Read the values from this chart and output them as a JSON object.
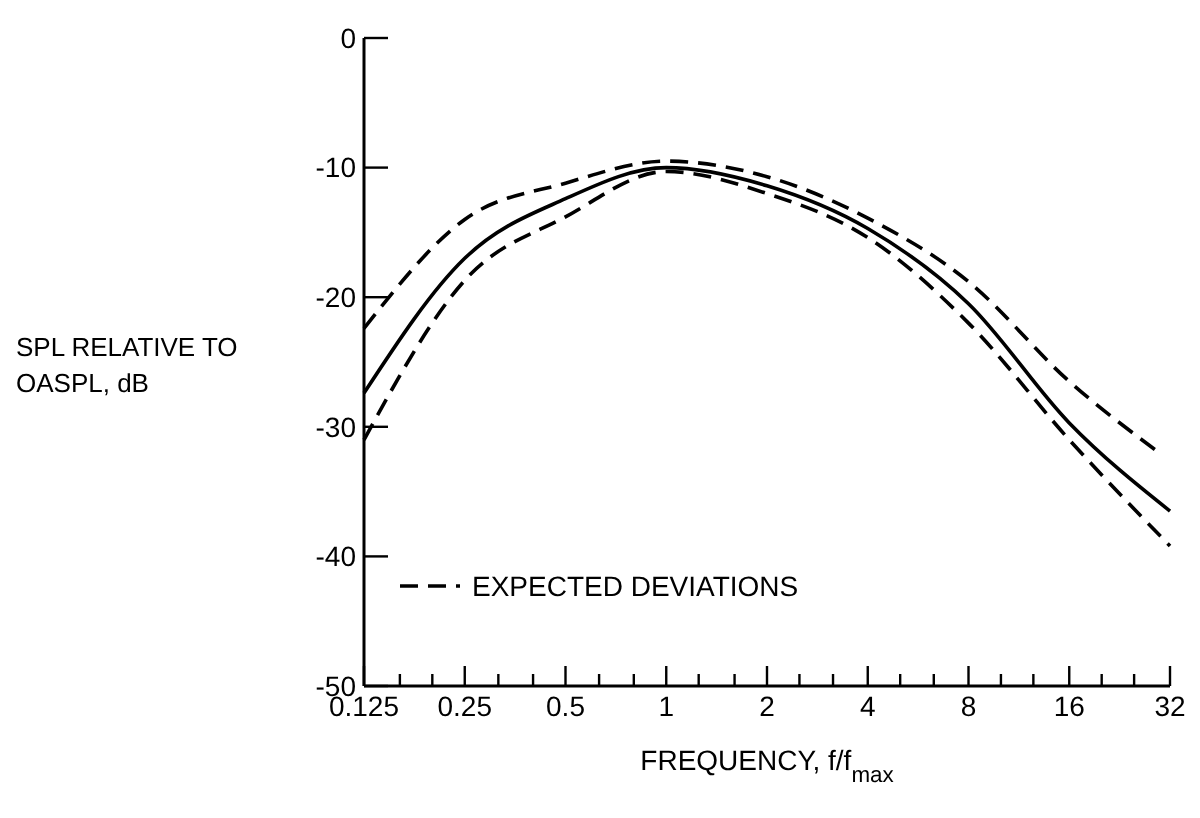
{
  "chart_data": {
    "type": "line",
    "xlabel": "FREQUENCY, f/f$_{max}$",
    "ylabel": "SPL RELATIVE TO OASPL, dB",
    "log": "x",
    "xlim": [
      0.125,
      32
    ],
    "ylim": [
      -50,
      0
    ],
    "xticks": [
      0.125,
      {
        "value": 0.16,
        "label": null
      },
      {
        "value": 0.2,
        "label": null
      },
      0.25,
      {
        "value": 0.315,
        "label": null
      },
      {
        "value": 0.4,
        "label": null
      },
      0.5,
      {
        "value": 0.63,
        "label": null
      },
      {
        "value": 0.8,
        "label": null
      },
      1,
      {
        "value": 1.25,
        "label": null
      },
      {
        "value": 1.6,
        "label": null
      },
      2,
      {
        "value": 2.5,
        "label": null
      },
      {
        "value": 3.15,
        "label": null
      },
      4,
      {
        "value": 5,
        "label": null
      },
      {
        "value": 6.3,
        "label": null
      },
      8,
      {
        "value": 10,
        "label": null
      },
      {
        "value": 12.5,
        "label": null
      },
      16,
      {
        "value": 20,
        "label": null
      },
      {
        "value": 25,
        "label": null
      },
      32
    ],
    "yticks": [
      0,
      -10,
      -20,
      -30,
      -40,
      -50
    ],
    "grid": false,
    "legend": "bottom left",
    "series": [
      {
        "color": "#000000",
        "line_style": "solid",
        "x": [
          0.125,
          0.25,
          0.5,
          1,
          2,
          4,
          8,
          16,
          32
        ],
        "values": [
          -27.4,
          -17,
          -12.4,
          -10,
          -11.4,
          -14.7,
          -20.5,
          -29.7,
          -36.5
        ]
      },
      {
        "name": "EXPECTED DEVIATIONS",
        "color": "#000000",
        "line_style": "dashed",
        "x": [
          0.125,
          0.25,
          0.5,
          1,
          2,
          4,
          8,
          16,
          29
        ],
        "values": [
          -22.4,
          -14,
          -11.2,
          -9.5,
          -10.7,
          -13.9,
          -18.8,
          -26.5,
          -31.8
        ]
      },
      {
        "color": "#000000",
        "line_style": "dashed",
        "x": [
          0.125,
          0.25,
          0.5,
          1,
          2,
          4,
          8,
          16,
          32
        ],
        "values": [
          -31,
          -18.7,
          -13.8,
          -10.3,
          -12,
          -15.4,
          -22,
          -31,
          -39.2
        ]
      }
    ]
  }
}
